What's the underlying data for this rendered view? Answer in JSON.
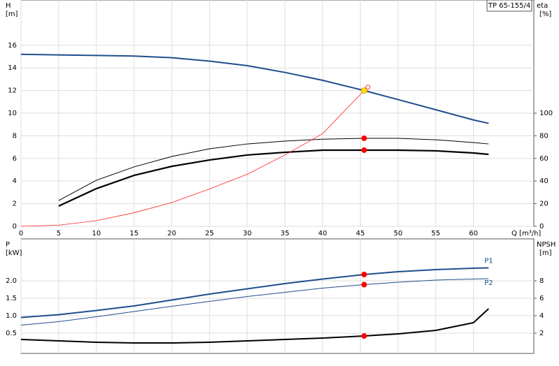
{
  "chart_data": [
    {
      "type": "line",
      "title": "TP 65-155/4",
      "y_label": "H",
      "y_unit": "[m]",
      "y2_label": "eta",
      "y2_unit": "[%]",
      "x_label": "Q [m³/h]",
      "xlim": [
        0,
        68
      ],
      "xticks": [
        0,
        5,
        10,
        15,
        20,
        25,
        30,
        35,
        40,
        45,
        50,
        55,
        60
      ],
      "ylim": [
        0,
        20
      ],
      "yticks": [
        0,
        2,
        4,
        6,
        8,
        10,
        12,
        14,
        16
      ],
      "y2lim": [
        0,
        200
      ],
      "y2ticks": [
        0,
        20,
        40,
        60,
        80,
        100
      ],
      "grid": true,
      "x": [
        0,
        5,
        10,
        15,
        20,
        25,
        30,
        35,
        40,
        45.5,
        50,
        55,
        60,
        62
      ],
      "series": [
        {
          "color": "#1f4e8c",
          "width": 2,
          "values": [
            15.2,
            15.15,
            15.1,
            15.05,
            14.9,
            14.6,
            14.2,
            13.6,
            12.9,
            12.0,
            11.2,
            10.3,
            9.4,
            9.1
          ]
        },
        {
          "color": "#000000",
          "width": 1,
          "axis": "y2",
          "values": [
            null,
            22.8,
            40.7,
            52.5,
            61.7,
            68.5,
            72.8,
            75.3,
            77,
            77.8,
            77.8,
            76.5,
            74,
            72.8
          ]
        },
        {
          "color": "#000000",
          "width": 2.2,
          "axis": "y2",
          "values": [
            null,
            17.9,
            33.3,
            45,
            53,
            58.6,
            63,
            65.4,
            67.3,
            67.3,
            67.3,
            66.7,
            64.8,
            63.6
          ]
        },
        {
          "color": "#ff2020",
          "width": 0.8,
          "values": [
            0,
            0.1,
            0.5,
            1.2,
            2.1,
            3.3,
            4.6,
            6.3,
            8.2,
            12.0,
            null,
            null,
            null,
            null
          ]
        }
      ],
      "points": [
        {
          "x": 45.5,
          "y": 12.0,
          "color": "#ffe000"
        },
        {
          "x": 46,
          "y": 12.3,
          "color": "#ff4040",
          "open": true
        },
        {
          "x": 45.5,
          "y": 77.8,
          "axis": "y2",
          "color": "#ff0000"
        },
        {
          "x": 45.5,
          "y": 67.3,
          "axis": "y2",
          "color": "#ff0000"
        }
      ]
    },
    {
      "type": "line",
      "y_label": "P",
      "y_unit": "[kW]",
      "y2_label": "NPSH",
      "y2_unit": "[m]",
      "xlim": [
        0,
        68
      ],
      "ylim": [
        0,
        3.2
      ],
      "yticks": [
        0.5,
        {
          "value": 1,
          "label": "1.0"
        },
        1.5,
        {
          "value": 2,
          "label": "2.0"
        }
      ],
      "y2lim": [
        0,
        12.8
      ],
      "y2ticks": [
        2,
        4,
        6,
        8
      ],
      "grid": true,
      "x": [
        0,
        5,
        10,
        15,
        20,
        25,
        30,
        35,
        40,
        45.5,
        50,
        55,
        60,
        62
      ],
      "series": [
        {
          "name": "P1",
          "color": "#1f4e8c",
          "width": 2,
          "values": [
            0.95,
            1.03,
            1.15,
            1.28,
            1.45,
            1.62,
            1.77,
            1.92,
            2.05,
            2.18,
            2.26,
            2.32,
            2.36,
            2.37
          ]
        },
        {
          "name": "P2",
          "color": "#1f4e8c",
          "width": 1,
          "values": [
            0.73,
            0.83,
            0.97,
            1.12,
            1.27,
            1.41,
            1.55,
            1.67,
            1.79,
            1.89,
            1.96,
            2.02,
            2.05,
            2.06
          ]
        },
        {
          "color": "#000000",
          "width": 2,
          "axis": "y2",
          "values": [
            1.28,
            1.12,
            0.96,
            0.88,
            0.88,
            0.96,
            1.12,
            1.28,
            1.44,
            1.68,
            1.92,
            2.32,
            3.2,
            4.8
          ]
        }
      ],
      "points": [
        {
          "x": 45.5,
          "y": 2.18,
          "color": "#ff0000"
        },
        {
          "x": 45.5,
          "y": 1.89,
          "color": "#ff0000"
        },
        {
          "x": 45.5,
          "y": 1.68,
          "axis": "y2",
          "color": "#ff0000"
        }
      ]
    }
  ]
}
